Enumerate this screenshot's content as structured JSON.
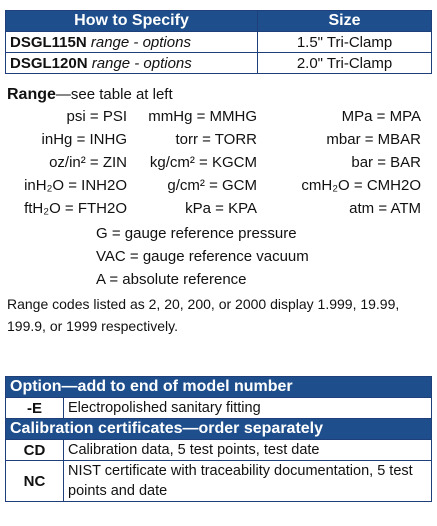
{
  "spec_table": {
    "headers": [
      "How to Specify",
      "Size"
    ],
    "rows": [
      {
        "model": "DSGL115N",
        "suffix": "range - options",
        "size": "1.5\" Tri-Clamp"
      },
      {
        "model": "DSGL120N",
        "suffix": "range - options",
        "size": "2.0\" Tri-Clamp"
      }
    ]
  },
  "range": {
    "title": "Range",
    "subtitle": "—see table at left"
  },
  "units": [
    [
      "psi = PSI",
      "mmHg = MMHG",
      "MPa = MPA"
    ],
    [
      "inHg = INHG",
      "torr = TORR",
      "mbar = MBAR"
    ],
    [
      "oz/in² = ZIN",
      "kg/cm² = KGCM",
      "bar = BAR"
    ],
    [
      "inH₂O = INH2O",
      "g/cm² = GCM",
      "cmH₂O = CMH2O"
    ],
    [
      "ftH₂O = FTH2O",
      "kPa = KPA",
      "atm = ATM"
    ]
  ],
  "references": [
    "G = gauge reference pressure",
    "VAC = gauge reference vacuum",
    "A = absolute reference"
  ],
  "note": "Range codes listed as 2, 20, 200, or 2000 display 1.999, 19.99, 199.9, or 1999 respectively.",
  "options": {
    "option_header": "Option—add to end of model number",
    "option_rows": [
      {
        "code": "-E",
        "desc": "Electropolished sanitary fitting"
      }
    ],
    "cert_header": "Calibration certificates—order separately",
    "cert_rows": [
      {
        "code": "CD",
        "desc": "Calibration data, 5 test points, test date"
      },
      {
        "code": "NC",
        "desc": "NIST certificate with traceability documentation, 5 test points and date"
      }
    ]
  }
}
